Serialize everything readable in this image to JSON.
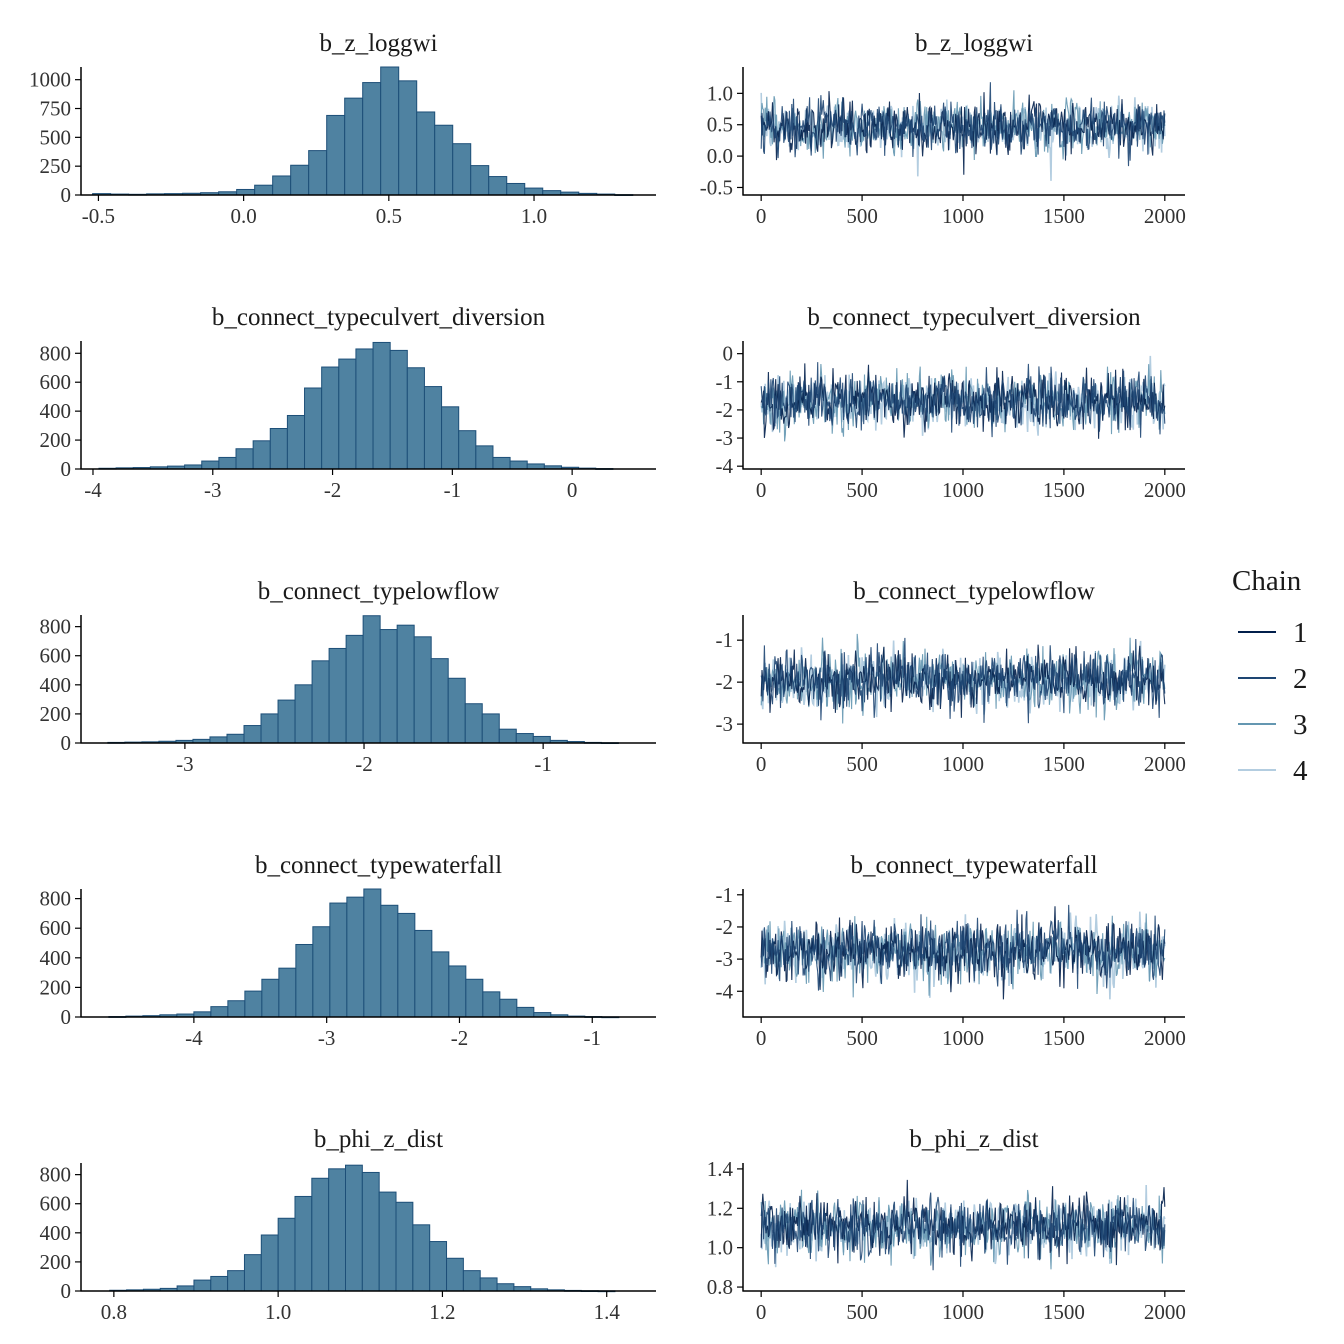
{
  "chart_data": [
    {
      "type": "bar",
      "role": "histogram",
      "title": "b_z_loggwi",
      "xlim": [
        -0.56,
        1.42
      ],
      "xticks": [
        -0.5,
        0.0,
        0.5,
        1.0
      ],
      "xtick_labels": [
        "-0.5",
        "0.0",
        "0.5",
        "1.0"
      ],
      "ylim": [
        0,
        1110
      ],
      "yticks": [
        0,
        250,
        500,
        750,
        1000
      ],
      "ytick_labels": [
        "0",
        "250",
        "500",
        "750",
        "1000"
      ],
      "bin_start": -0.52,
      "bin_width": 0.062,
      "counts": [
        12,
        8,
        6,
        10,
        12,
        15,
        20,
        28,
        48,
        85,
        165,
        258,
        385,
        690,
        840,
        975,
        1110,
        990,
        720,
        605,
        445,
        255,
        160,
        100,
        60,
        38,
        25,
        14,
        8,
        3
      ]
    },
    {
      "type": "line",
      "role": "trace",
      "title": "b_z_loggwi",
      "xlim": [
        -90,
        2100
      ],
      "ylim": [
        -0.62,
        1.42
      ],
      "xticks": [
        0,
        500,
        1000,
        1500,
        2000
      ],
      "xtick_labels": [
        "0",
        "500",
        "1000",
        "1500",
        "2000"
      ],
      "yticks": [
        -0.5,
        0.0,
        0.5,
        1.0
      ],
      "ytick_labels": [
        "-0.5",
        "0.0",
        "0.5",
        "1.0"
      ],
      "iterations": 2000,
      "chain_mean": 0.47,
      "chain_sd": 0.24
    },
    {
      "type": "bar",
      "role": "histogram",
      "title": "b_connect_typeculvert_diversion",
      "xlim": [
        -4.1,
        0.7
      ],
      "xticks": [
        -4,
        -3,
        -2,
        -1,
        0
      ],
      "xtick_labels": [
        "-4",
        "-3",
        "-2",
        "-1",
        "0"
      ],
      "ylim": [
        0,
        885
      ],
      "yticks": [
        0,
        200,
        400,
        600,
        800
      ],
      "ytick_labels": [
        "0",
        "200",
        "400",
        "600",
        "800"
      ],
      "bin_start": -3.95,
      "bin_width": 0.143,
      "counts": [
        5,
        8,
        10,
        15,
        20,
        28,
        55,
        80,
        140,
        195,
        280,
        370,
        560,
        705,
        760,
        830,
        875,
        820,
        700,
        570,
        430,
        265,
        160,
        80,
        55,
        35,
        22,
        12,
        6,
        3
      ]
    },
    {
      "type": "line",
      "role": "trace",
      "title": "b_connect_typeculvert_diversion",
      "xlim": [
        -90,
        2100
      ],
      "ylim": [
        -4.1,
        0.45
      ],
      "xticks": [
        0,
        500,
        1000,
        1500,
        2000
      ],
      "xtick_labels": [
        "0",
        "500",
        "1000",
        "1500",
        "2000"
      ],
      "yticks": [
        -4,
        -3,
        -2,
        -1,
        0
      ],
      "ytick_labels": [
        "-4",
        "-3",
        "-2",
        "-1",
        "0"
      ],
      "iterations": 2000,
      "chain_mean": -1.66,
      "chain_sd": 0.58
    },
    {
      "type": "bar",
      "role": "histogram",
      "title": "b_connect_typelowflow",
      "xlim": [
        -3.58,
        -0.37
      ],
      "xticks": [
        -3,
        -2,
        -1
      ],
      "xtick_labels": [
        "-3",
        "-2",
        "-1"
      ],
      "ylim": [
        0,
        880
      ],
      "yticks": [
        0,
        200,
        400,
        600,
        800
      ],
      "ytick_labels": [
        "0",
        "200",
        "400",
        "600",
        "800"
      ],
      "bin_start": -3.43,
      "bin_width": 0.095,
      "counts": [
        4,
        6,
        8,
        12,
        18,
        25,
        42,
        60,
        120,
        200,
        295,
        400,
        565,
        650,
        740,
        875,
        780,
        810,
        730,
        580,
        445,
        270,
        200,
        95,
        65,
        45,
        18,
        10,
        4,
        2
      ]
    },
    {
      "type": "line",
      "role": "trace",
      "title": "b_connect_typelowflow",
      "xlim": [
        -90,
        2100
      ],
      "ylim": [
        -3.45,
        -0.4
      ],
      "xticks": [
        0,
        500,
        1000,
        1500,
        2000
      ],
      "xtick_labels": [
        "0",
        "500",
        "1000",
        "1500",
        "2000"
      ],
      "yticks": [
        -3,
        -2,
        -1
      ],
      "ytick_labels": [
        "-3",
        "-2",
        "-1"
      ],
      "iterations": 2000,
      "chain_mean": -1.95,
      "chain_sd": 0.4
    },
    {
      "type": "bar",
      "role": "histogram",
      "title": "b_connect_typewaterfall",
      "xlim": [
        -4.85,
        -0.52
      ],
      "xticks": [
        -4,
        -3,
        -2,
        -1
      ],
      "xtick_labels": [
        "-4",
        "-3",
        "-2",
        "-1"
      ],
      "ylim": [
        0,
        865
      ],
      "yticks": [
        0,
        200,
        400,
        600,
        800
      ],
      "ytick_labels": [
        "0",
        "200",
        "400",
        "600",
        "800"
      ],
      "bin_start": -4.64,
      "bin_width": 0.128,
      "counts": [
        3,
        6,
        9,
        15,
        20,
        35,
        70,
        110,
        175,
        255,
        330,
        490,
        610,
        770,
        810,
        865,
        755,
        700,
        585,
        440,
        345,
        255,
        170,
        120,
        65,
        30,
        15,
        6,
        3,
        1
      ]
    },
    {
      "type": "line",
      "role": "trace",
      "title": "b_connect_typewaterfall",
      "xlim": [
        -90,
        2100
      ],
      "ylim": [
        -4.8,
        -0.82
      ],
      "xticks": [
        0,
        500,
        1000,
        1500,
        2000
      ],
      "xtick_labels": [
        "0",
        "500",
        "1000",
        "1500",
        "2000"
      ],
      "yticks": [
        -4,
        -3,
        -2,
        -1
      ],
      "ytick_labels": [
        "-4",
        "-3",
        "-2",
        "-1"
      ],
      "iterations": 2000,
      "chain_mean": -2.75,
      "chain_sd": 0.53
    },
    {
      "type": "bar",
      "role": "histogram",
      "title": "b_phi_z_dist",
      "xlim": [
        0.76,
        1.46
      ],
      "xticks": [
        0.8,
        1.0,
        1.2,
        1.4
      ],
      "xtick_labels": [
        "0.8",
        "1.0",
        "1.2",
        "1.4"
      ],
      "ylim": [
        0,
        880
      ],
      "yticks": [
        0,
        200,
        400,
        600,
        800
      ],
      "ytick_labels": [
        "0",
        "200",
        "400",
        "600",
        "800"
      ],
      "bin_start": 0.795,
      "bin_width": 0.0205,
      "counts": [
        5,
        8,
        12,
        18,
        35,
        75,
        100,
        140,
        250,
        385,
        500,
        650,
        775,
        840,
        865,
        815,
        680,
        610,
        455,
        340,
        225,
        140,
        90,
        50,
        30,
        15,
        8,
        4,
        2,
        1
      ]
    },
    {
      "type": "line",
      "role": "trace",
      "title": "b_phi_z_dist",
      "xlim": [
        -90,
        2100
      ],
      "ylim": [
        0.78,
        1.43
      ],
      "xticks": [
        0,
        500,
        1000,
        1500,
        2000
      ],
      "xtick_labels": [
        "0",
        "500",
        "1000",
        "1500",
        "2000"
      ],
      "yticks": [
        0.8,
        1.0,
        1.2,
        1.4
      ],
      "ytick_labels": [
        "0.8",
        "1.0",
        "1.2",
        "1.4"
      ],
      "iterations": 2000,
      "chain_mean": 1.11,
      "chain_sd": 0.085
    }
  ],
  "legend": {
    "title": "Chain",
    "entries": [
      {
        "label": "1",
        "color": "#011f4b"
      },
      {
        "label": "2",
        "color": "#1e4673"
      },
      {
        "label": "3",
        "color": "#6497b1"
      },
      {
        "label": "4",
        "color": "#b3cde0"
      }
    ]
  },
  "colors": {
    "hist_fill": "#4f82a1",
    "hist_edge": "#1d4f78",
    "axis": "#000000",
    "trace_band": "#c8dbea"
  }
}
